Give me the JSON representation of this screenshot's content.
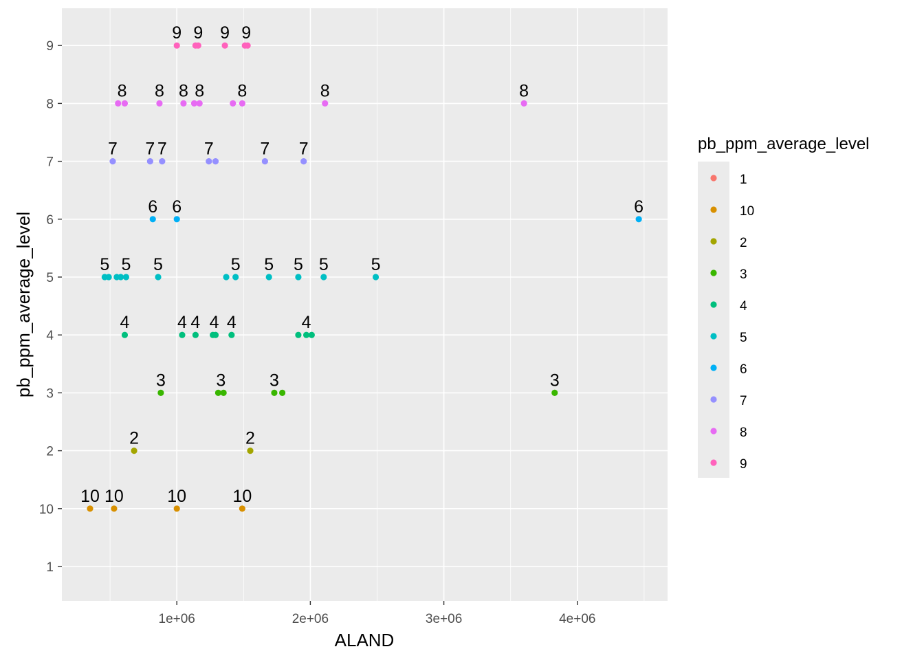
{
  "chart_data": {
    "type": "scatter",
    "xlabel": "ALAND",
    "ylabel": "pb_ppm_average_level",
    "x_scale": "linear",
    "xlim": [
      130000,
      4670000
    ],
    "x_ticks": [
      1000000,
      2000000,
      3000000,
      4000000
    ],
    "x_tick_labels": [
      "1e+06",
      "2e+06",
      "3e+06",
      "4e+06"
    ],
    "y_scale": "discrete",
    "y_categories": [
      "1",
      "10",
      "2",
      "3",
      "4",
      "5",
      "6",
      "7",
      "8",
      "9"
    ],
    "grid": true,
    "legend": {
      "title": "pb_ppm_average_level",
      "position": "right",
      "entries": [
        {
          "label": "1",
          "color": "#F8766D"
        },
        {
          "label": "10",
          "color": "#D89000"
        },
        {
          "label": "2",
          "color": "#A3A500"
        },
        {
          "label": "3",
          "color": "#39B600"
        },
        {
          "label": "4",
          "color": "#00BF7D"
        },
        {
          "label": "5",
          "color": "#00BFC4"
        },
        {
          "label": "6",
          "color": "#00B0F6"
        },
        {
          "label": "7",
          "color": "#9590FF"
        },
        {
          "label": "8",
          "color": "#E76BF3"
        },
        {
          "label": "9",
          "color": "#FF62BC"
        }
      ]
    },
    "points": [
      {
        "x": 1000000,
        "y": "9"
      },
      {
        "x": 1140000,
        "y": "9"
      },
      {
        "x": 1160000,
        "y": "9"
      },
      {
        "x": 1360000,
        "y": "9"
      },
      {
        "x": 1510000,
        "y": "9"
      },
      {
        "x": 1530000,
        "y": "9"
      },
      {
        "x": 560000,
        "y": "8"
      },
      {
        "x": 610000,
        "y": "8"
      },
      {
        "x": 870000,
        "y": "8"
      },
      {
        "x": 1050000,
        "y": "8"
      },
      {
        "x": 1130000,
        "y": "8"
      },
      {
        "x": 1170000,
        "y": "8"
      },
      {
        "x": 1420000,
        "y": "8"
      },
      {
        "x": 1490000,
        "y": "8"
      },
      {
        "x": 2110000,
        "y": "8"
      },
      {
        "x": 3600000,
        "y": "8"
      },
      {
        "x": 520000,
        "y": "7"
      },
      {
        "x": 800000,
        "y": "7"
      },
      {
        "x": 890000,
        "y": "7"
      },
      {
        "x": 1240000,
        "y": "7"
      },
      {
        "x": 1290000,
        "y": "7"
      },
      {
        "x": 1660000,
        "y": "7"
      },
      {
        "x": 1950000,
        "y": "7"
      },
      {
        "x": 820000,
        "y": "6"
      },
      {
        "x": 1000000,
        "y": "6"
      },
      {
        "x": 4460000,
        "y": "6"
      },
      {
        "x": 460000,
        "y": "5"
      },
      {
        "x": 490000,
        "y": "5"
      },
      {
        "x": 550000,
        "y": "5"
      },
      {
        "x": 580000,
        "y": "5"
      },
      {
        "x": 620000,
        "y": "5"
      },
      {
        "x": 860000,
        "y": "5"
      },
      {
        "x": 1370000,
        "y": "5"
      },
      {
        "x": 1440000,
        "y": "5"
      },
      {
        "x": 1690000,
        "y": "5"
      },
      {
        "x": 1910000,
        "y": "5"
      },
      {
        "x": 2100000,
        "y": "5"
      },
      {
        "x": 2490000,
        "y": "5"
      },
      {
        "x": 610000,
        "y": "4"
      },
      {
        "x": 1040000,
        "y": "4"
      },
      {
        "x": 1140000,
        "y": "4"
      },
      {
        "x": 1270000,
        "y": "4"
      },
      {
        "x": 1290000,
        "y": "4"
      },
      {
        "x": 1410000,
        "y": "4"
      },
      {
        "x": 1910000,
        "y": "4"
      },
      {
        "x": 1970000,
        "y": "4"
      },
      {
        "x": 2010000,
        "y": "4"
      },
      {
        "x": 880000,
        "y": "3"
      },
      {
        "x": 1310000,
        "y": "3"
      },
      {
        "x": 1350000,
        "y": "3"
      },
      {
        "x": 1730000,
        "y": "3"
      },
      {
        "x": 1790000,
        "y": "3"
      },
      {
        "x": 3830000,
        "y": "3"
      },
      {
        "x": 680000,
        "y": "2"
      },
      {
        "x": 1550000,
        "y": "2"
      },
      {
        "x": 350000,
        "y": "10"
      },
      {
        "x": 530000,
        "y": "10"
      },
      {
        "x": 1000000,
        "y": "10"
      },
      {
        "x": 1490000,
        "y": "10"
      }
    ],
    "point_labels": [
      {
        "x": 1000000,
        "y": "9",
        "text": "9"
      },
      {
        "x": 1160000,
        "y": "9",
        "text": "9"
      },
      {
        "x": 1360000,
        "y": "9",
        "text": "9"
      },
      {
        "x": 1520000,
        "y": "9",
        "text": "9"
      },
      {
        "x": 590000,
        "y": "8",
        "text": "8"
      },
      {
        "x": 870000,
        "y": "8",
        "text": "8"
      },
      {
        "x": 1050000,
        "y": "8",
        "text": "8"
      },
      {
        "x": 1170000,
        "y": "8",
        "text": "8"
      },
      {
        "x": 1490000,
        "y": "8",
        "text": "8"
      },
      {
        "x": 2110000,
        "y": "8",
        "text": "8"
      },
      {
        "x": 3600000,
        "y": "8",
        "text": "8"
      },
      {
        "x": 520000,
        "y": "7",
        "text": "7"
      },
      {
        "x": 800000,
        "y": "7",
        "text": "7"
      },
      {
        "x": 890000,
        "y": "7",
        "text": "7"
      },
      {
        "x": 1240000,
        "y": "7",
        "text": "7"
      },
      {
        "x": 1660000,
        "y": "7",
        "text": "7"
      },
      {
        "x": 1950000,
        "y": "7",
        "text": "7"
      },
      {
        "x": 820000,
        "y": "6",
        "text": "6"
      },
      {
        "x": 1000000,
        "y": "6",
        "text": "6"
      },
      {
        "x": 4460000,
        "y": "6",
        "text": "6"
      },
      {
        "x": 460000,
        "y": "5",
        "text": "5"
      },
      {
        "x": 620000,
        "y": "5",
        "text": "5"
      },
      {
        "x": 860000,
        "y": "5",
        "text": "5"
      },
      {
        "x": 1440000,
        "y": "5",
        "text": "5"
      },
      {
        "x": 1690000,
        "y": "5",
        "text": "5"
      },
      {
        "x": 1910000,
        "y": "5",
        "text": "5"
      },
      {
        "x": 2100000,
        "y": "5",
        "text": "5"
      },
      {
        "x": 2490000,
        "y": "5",
        "text": "5"
      },
      {
        "x": 610000,
        "y": "4",
        "text": "4"
      },
      {
        "x": 1040000,
        "y": "4",
        "text": "4"
      },
      {
        "x": 1140000,
        "y": "4",
        "text": "4"
      },
      {
        "x": 1280000,
        "y": "4",
        "text": "4"
      },
      {
        "x": 1410000,
        "y": "4",
        "text": "4"
      },
      {
        "x": 1970000,
        "y": "4",
        "text": "4"
      },
      {
        "x": 880000,
        "y": "3",
        "text": "3"
      },
      {
        "x": 1330000,
        "y": "3",
        "text": "3"
      },
      {
        "x": 1730000,
        "y": "3",
        "text": "3"
      },
      {
        "x": 3830000,
        "y": "3",
        "text": "3"
      },
      {
        "x": 680000,
        "y": "2",
        "text": "2"
      },
      {
        "x": 1550000,
        "y": "2",
        "text": "2"
      },
      {
        "x": 350000,
        "y": "10",
        "text": "10"
      },
      {
        "x": 530000,
        "y": "10",
        "text": "10"
      },
      {
        "x": 1000000,
        "y": "10",
        "text": "10"
      },
      {
        "x": 1490000,
        "y": "10",
        "text": "10"
      }
    ]
  }
}
